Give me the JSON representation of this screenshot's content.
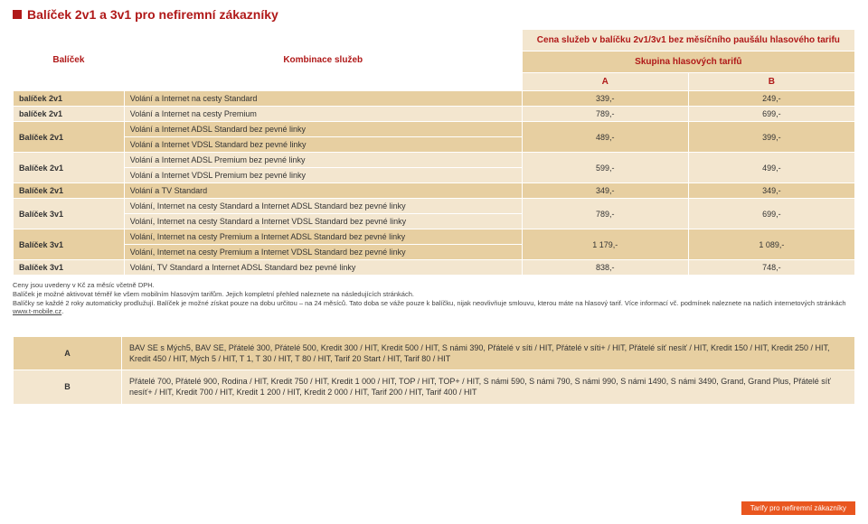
{
  "title": "Balíček 2v1 a 3v1 pro nefiremní zákazníky",
  "headers": {
    "package": "Balíček",
    "combo": "Kombinace služeb",
    "price_top": "Cena služeb v balíčku 2v1/3v1 bez měsíčního paušálu hlasového tarifu",
    "group": "Skupina hlasových tarifů",
    "colA": "A",
    "colB": "B"
  },
  "rows": [
    {
      "name": "balíček 2v1",
      "desc": [
        "Volání a Internet na cesty Standard"
      ],
      "a": "339,-",
      "b": "249,-",
      "shade": "odd"
    },
    {
      "name": "balíček 2v1",
      "desc": [
        "Volání a Internet na cesty Premium"
      ],
      "a": "789,-",
      "b": "699,-",
      "shade": "even"
    },
    {
      "name": "Balíček 2v1",
      "desc": [
        "Volání a Internet ADSL Standard bez pevné linky",
        "Volání a Internet VDSL Standard bez pevné linky"
      ],
      "a": "489,-",
      "b": "399,-",
      "shade": "odd"
    },
    {
      "name": "Balíček 2v1",
      "desc": [
        "Volání a Internet ADSL Premium bez pevné linky",
        "Volání a Internet VDSL Premium bez pevné linky"
      ],
      "a": "599,-",
      "b": "499,-",
      "shade": "even"
    },
    {
      "name": "Balíček 2v1",
      "desc": [
        "Volání a TV Standard"
      ],
      "a": "349,-",
      "b": "349,-",
      "shade": "odd"
    },
    {
      "name": "Balíček 3v1",
      "desc": [
        "Volání, Internet na cesty Standard a Internet ADSL Standard bez pevné linky",
        "Volání, Internet na cesty Standard a Internet VDSL Standard bez pevné linky"
      ],
      "a": "789,-",
      "b": "699,-",
      "shade": "even"
    },
    {
      "name": "Balíček 3v1",
      "desc": [
        "Volání, Internet na cesty Premium a Internet ADSL Standard bez pevné linky",
        "Volání, Internet na cesty Premium a Internet VDSL Standard bez pevné linky"
      ],
      "a": "1 179,-",
      "b": "1 089,-",
      "shade": "odd"
    },
    {
      "name": "Balíček 3v1",
      "desc": [
        "Volání, TV Standard a Internet ADSL Standard bez pevné linky"
      ],
      "a": "838,-",
      "b": "748,-",
      "shade": "even"
    }
  ],
  "footnotes": [
    "Ceny jsou uvedeny v Kč za měsíc včetně DPH.",
    "Balíček je možné aktivovat téměř ke všem mobilním hlasovým tarifům. Jejich kompletní přehled naleznete na následujících stránkách.",
    "Balíčky se každé 2 roky automaticky prodlužují. Balíček je možné získat pouze na dobu určitou – na 24 měsíců. Tato doba se váže pouze k balíčku, nijak neovlivňuje smlouvu, kterou máte na hlasový tarif. Více informací vč. podmínek naleznete na našich internetových stránkách ",
    "www.t-mobile.cz",
    "."
  ],
  "legend": {
    "A": "BAV SE s Mých5, BAV SE, Přátelé 300, Přátelé 500, Kredit 300 / HIT, Kredit 500 / HIT, S námi 390, Přátelé v síti / HIT, Přátelé v síti+ / HIT, Přátelé síť nesíť / HIT, Kredit 150 / HIT, Kredit 250 / HIT, Kredit 450 / HIT, Mých 5 / HIT, T 1, T 30 / HIT, T 80 / HIT, Tarif 20 Start / HIT, Tarif 80 / HIT",
    "B": "Přátelé 700, Přátelé 900, Rodina / HIT, Kredit 750 / HIT, Kredit 1 000 / HIT, TOP / HIT, TOP+ / HIT, S námi 590, S námi 790, S námi 990, S námi 1490, S námi 3490, Grand, Grand Plus, Přátelé síť nesíť+ / HIT, Kredit 700 / HIT, Kredit 1 200 / HIT, Kredit 2 000 / HIT, Tarif 200 / HIT, Tarif 400 / HIT"
  },
  "footer_tag": "Tarify pro nefiremní zákazníky"
}
